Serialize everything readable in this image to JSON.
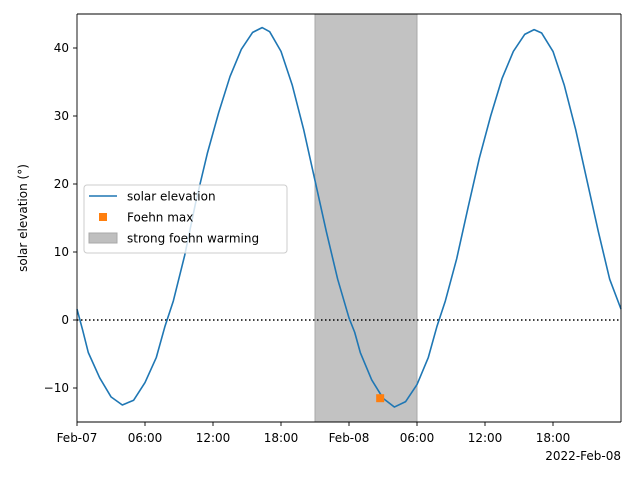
{
  "chart_data": {
    "type": "line",
    "ylabel": "solar elevation (°)",
    "xlabel": "",
    "x_offset_label": "2022-Feb-08",
    "x_ticks": [
      "2022-02-07T00:00",
      "2022-02-07T06:00",
      "2022-02-07T12:00",
      "2022-02-07T18:00",
      "2022-02-08T00:00",
      "2022-02-08T06:00",
      "2022-02-08T12:00",
      "2022-02-08T18:00"
    ],
    "x_tick_labels": [
      "Feb-07",
      "06:00",
      "12:00",
      "18:00",
      "Feb-08",
      "06:00",
      "12:00",
      "18:00"
    ],
    "xlim": [
      "2022-02-07T00:00",
      "2022-02-09T00:00"
    ],
    "ylim": [
      -15,
      45
    ],
    "y_ticks": [
      -10,
      0,
      10,
      20,
      30,
      40
    ],
    "y_tick_labels": [
      "−10",
      "0",
      "10",
      "20",
      "30",
      "40"
    ],
    "grid": false,
    "legend_position": "center-left",
    "series": [
      {
        "name": "solar elevation",
        "kind": "line",
        "color": "#1f77b4",
        "points": [
          {
            "x": "2022-02-07T00:00",
            "y": 1.6
          },
          {
            "x": "2022-02-07T00:30",
            "y": -1.5
          },
          {
            "x": "2022-02-07T01:00",
            "y": -4.8
          },
          {
            "x": "2022-02-07T02:00",
            "y": -8.5
          },
          {
            "x": "2022-02-07T03:00",
            "y": -11.3
          },
          {
            "x": "2022-02-07T04:00",
            "y": -12.5
          },
          {
            "x": "2022-02-07T05:00",
            "y": -11.8
          },
          {
            "x": "2022-02-07T06:00",
            "y": -9.2
          },
          {
            "x": "2022-02-07T07:00",
            "y": -5.5
          },
          {
            "x": "2022-02-07T07:45",
            "y": -1.0
          },
          {
            "x": "2022-02-07T08:30",
            "y": 2.8
          },
          {
            "x": "2022-02-07T09:30",
            "y": 9.5
          },
          {
            "x": "2022-02-07T10:30",
            "y": 17.5
          },
          {
            "x": "2022-02-07T11:30",
            "y": 24.5
          },
          {
            "x": "2022-02-07T12:30",
            "y": 30.5
          },
          {
            "x": "2022-02-07T13:30",
            "y": 35.8
          },
          {
            "x": "2022-02-07T14:30",
            "y": 39.8
          },
          {
            "x": "2022-02-07T15:30",
            "y": 42.3
          },
          {
            "x": "2022-02-07T16:20",
            "y": 43.0
          },
          {
            "x": "2022-02-07T17:00",
            "y": 42.4
          },
          {
            "x": "2022-02-07T18:00",
            "y": 39.5
          },
          {
            "x": "2022-02-07T19:00",
            "y": 34.5
          },
          {
            "x": "2022-02-07T20:00",
            "y": 28.0
          },
          {
            "x": "2022-02-07T21:00",
            "y": 20.5
          },
          {
            "x": "2022-02-07T22:00",
            "y": 13.0
          },
          {
            "x": "2022-02-07T23:00",
            "y": 6.0
          },
          {
            "x": "2022-02-08T00:00",
            "y": 0.3
          },
          {
            "x": "2022-02-08T00:30",
            "y": -1.8
          },
          {
            "x": "2022-02-08T01:00",
            "y": -4.8
          },
          {
            "x": "2022-02-08T02:00",
            "y": -8.8
          },
          {
            "x": "2022-02-08T03:00",
            "y": -11.5
          },
          {
            "x": "2022-02-08T04:00",
            "y": -12.8
          },
          {
            "x": "2022-02-08T05:00",
            "y": -12.0
          },
          {
            "x": "2022-02-08T06:00",
            "y": -9.5
          },
          {
            "x": "2022-02-08T07:00",
            "y": -5.5
          },
          {
            "x": "2022-02-08T07:45",
            "y": -1.0
          },
          {
            "x": "2022-02-08T08:30",
            "y": 2.8
          },
          {
            "x": "2022-02-08T09:30",
            "y": 9.0
          },
          {
            "x": "2022-02-08T10:30",
            "y": 16.5
          },
          {
            "x": "2022-02-08T11:30",
            "y": 23.8
          },
          {
            "x": "2022-02-08T12:30",
            "y": 30.0
          },
          {
            "x": "2022-02-08T13:30",
            "y": 35.5
          },
          {
            "x": "2022-02-08T14:30",
            "y": 39.5
          },
          {
            "x": "2022-02-08T15:30",
            "y": 42.0
          },
          {
            "x": "2022-02-08T16:20",
            "y": 42.7
          },
          {
            "x": "2022-02-08T17:00",
            "y": 42.2
          },
          {
            "x": "2022-02-08T18:00",
            "y": 39.5
          },
          {
            "x": "2022-02-08T19:00",
            "y": 34.5
          },
          {
            "x": "2022-02-08T20:00",
            "y": 28.0
          },
          {
            "x": "2022-02-08T21:00",
            "y": 20.5
          },
          {
            "x": "2022-02-08T22:00",
            "y": 13.0
          },
          {
            "x": "2022-02-08T23:00",
            "y": 6.0
          },
          {
            "x": "2022-02-09T00:00",
            "y": 1.6
          }
        ]
      },
      {
        "name": "Foehn max",
        "kind": "marker",
        "marker": "square",
        "color": "#ff7f0e",
        "points": [
          {
            "x": "2022-02-08T02:45",
            "y": -11.5
          }
        ]
      }
    ],
    "shaded_regions": [
      {
        "name": "strong foehn warming",
        "x_start": "2022-02-07T21:00",
        "x_end": "2022-02-08T06:00",
        "color": "#bfbfbf"
      }
    ],
    "reference_lines": [
      {
        "axis": "y",
        "value": 0,
        "style": "dotted",
        "color": "#000000"
      }
    ],
    "legend": [
      {
        "label": "solar elevation",
        "kind": "line",
        "color": "#1f77b4"
      },
      {
        "label": "Foehn max",
        "kind": "marker",
        "color": "#ff7f0e"
      },
      {
        "label": "strong foehn warming",
        "kind": "patch",
        "color": "#bfbfbf"
      }
    ]
  }
}
